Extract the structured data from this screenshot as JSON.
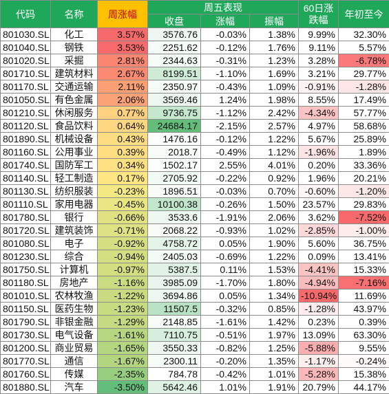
{
  "headers": {
    "code": "代码",
    "name": "名称",
    "weekly_change": "周涨幅",
    "friday_group": "周五表现",
    "close": "收盘",
    "change": "涨幅",
    "amplitude": "振幅",
    "sixty_day_line1": "60日涨",
    "sixty_day_line2": "跌幅",
    "ytd": "年初至今"
  },
  "colors": {
    "header_bg": "#1fa85a",
    "header_text": "#ffffff",
    "highlight_header_bg": "#ffc000",
    "highlight_header_text": "#c00000",
    "scale_high": "#f8696b",
    "scale_mid": "#ffeb84",
    "scale_low": "#63be7b",
    "scale_white": "#ffffff"
  },
  "chart_data": {
    "type": "table",
    "columns": [
      "代码",
      "名称",
      "周涨幅",
      "收盘",
      "涨幅",
      "振幅",
      "60日涨跌幅",
      "年初至今"
    ],
    "rows": [
      [
        "801030.SL",
        "化工",
        "3.57%",
        "3576.76",
        "-0.03%",
        "1.38%",
        "9.99%",
        "32.30%"
      ],
      [
        "801040.SL",
        "钢铁",
        "3.53%",
        "2251.62",
        "-0.12%",
        "1.76%",
        "9.11%",
        "5.57%"
      ],
      [
        "801020.SL",
        "采掘",
        "2.81%",
        "2344.63",
        "-0.31%",
        "1.23%",
        "3.28%",
        "-6.78%"
      ],
      [
        "801710.SL",
        "建筑材料",
        "2.67%",
        "8199.51",
        "-1.10%",
        "1.69%",
        "3.21%",
        "29.77%"
      ],
      [
        "801170.SL",
        "交通运输",
        "2.11%",
        "2350.97",
        "-0.43%",
        "1.09%",
        "-0.91%",
        "-1.28%"
      ],
      [
        "801050.SL",
        "有色金属",
        "2.06%",
        "3569.46",
        "1.24%",
        "1.98%",
        "8.55%",
        "17.49%"
      ],
      [
        "801210.SL",
        "休闲服务",
        "0.77%",
        "9736.75",
        "-1.12%",
        "2.42%",
        "-4.34%",
        "57.77%"
      ],
      [
        "801120.SL",
        "食品饮料",
        "0.64%",
        "24684.17",
        "-2.15%",
        "2.57%",
        "4.97%",
        "58.68%"
      ],
      [
        "801890.SL",
        "机械设备",
        "0.43%",
        "1476.16",
        "-0.12%",
        "1.22%",
        "5.67%",
        "25.89%"
      ],
      [
        "801160.SL",
        "公用事业",
        "0.39%",
        "2018.7",
        "-0.49%",
        "1.12%",
        "-1.96%",
        "1.89%"
      ],
      [
        "801740.SL",
        "国防军工",
        "0.34%",
        "1502.17",
        "2.55%",
        "4.01%",
        "0.20%",
        "33.36%"
      ],
      [
        "801140.SL",
        "轻工制造",
        "0.17%",
        "2705.92",
        "-0.22%",
        "0.92%",
        "1.96%",
        "20.21%"
      ],
      [
        "801130.SL",
        "纺织服装",
        "-0.23%",
        "1896.51",
        "-0.03%",
        "0.70%",
        "-0.60%",
        "-1.20%"
      ],
      [
        "801110.SL",
        "家用电器",
        "-0.45%",
        "10100.38",
        "-0.26%",
        "1.50%",
        "23.57%",
        "29.83%"
      ],
      [
        "801780.SL",
        "银行",
        "-0.66%",
        "3533.6",
        "-1.91%",
        "2.06%",
        "3.62%",
        "-7.52%"
      ],
      [
        "801720.SL",
        "建筑装饰",
        "-0.71%",
        "2068.22",
        "-0.93%",
        "1.02%",
        "-2.85%",
        "-1.00%"
      ],
      [
        "801080.SL",
        "电子",
        "-0.92%",
        "4758.72",
        "0.05%",
        "1.90%",
        "5.60%",
        "36.75%"
      ],
      [
        "801230.SL",
        "综合",
        "-0.94%",
        "2405.03",
        "-0.69%",
        "1.22%",
        "0.09%",
        "13.41%"
      ],
      [
        "801750.SL",
        "计算机",
        "-0.97%",
        "5387.5",
        "0.11%",
        "1.53%",
        "-4.41%",
        "15.33%"
      ],
      [
        "801180.SL",
        "房地产",
        "-1.16%",
        "3985.09",
        "-1.70%",
        "1.80%",
        "-4.94%",
        "-7.16%"
      ],
      [
        "801010.SL",
        "农林牧渔",
        "-1.22%",
        "3694.86",
        "0.05%",
        "1.34%",
        "-10.94%",
        "11.69%"
      ],
      [
        "801150.SL",
        "医药生物",
        "-1.23%",
        "11507.5",
        "-0.32%",
        "0.85%",
        "-1.28%",
        "43.97%"
      ],
      [
        "801790.SL",
        "非银金融",
        "-1.29%",
        "2148.85",
        "-1.61%",
        "1.42%",
        "0.23%",
        "0.39%"
      ],
      [
        "801730.SL",
        "电气设备",
        "-1.61%",
        "7110.75",
        "-0.51%",
        "1.97%",
        "13.09%",
        "63.30%"
      ],
      [
        "801200.SL",
        "商业贸易",
        "-1.65%",
        "3550.33",
        "-0.82%",
        "1.25%",
        "-5.88%",
        "9.55%"
      ],
      [
        "801770.SL",
        "通信",
        "-1.67%",
        "2300.11",
        "-0.20%",
        "1.35%",
        "-1.17%",
        "-0.24%"
      ],
      [
        "801760.SL",
        "传媒",
        "-2.35%",
        "784.78",
        "-0.42%",
        "1.01%",
        "-5.28%",
        "15.38%"
      ],
      [
        "801880.SL",
        "汽车",
        "-3.50%",
        "5642.46",
        "1.01%",
        "1.91%",
        "20.79%",
        "44.17%"
      ]
    ]
  }
}
